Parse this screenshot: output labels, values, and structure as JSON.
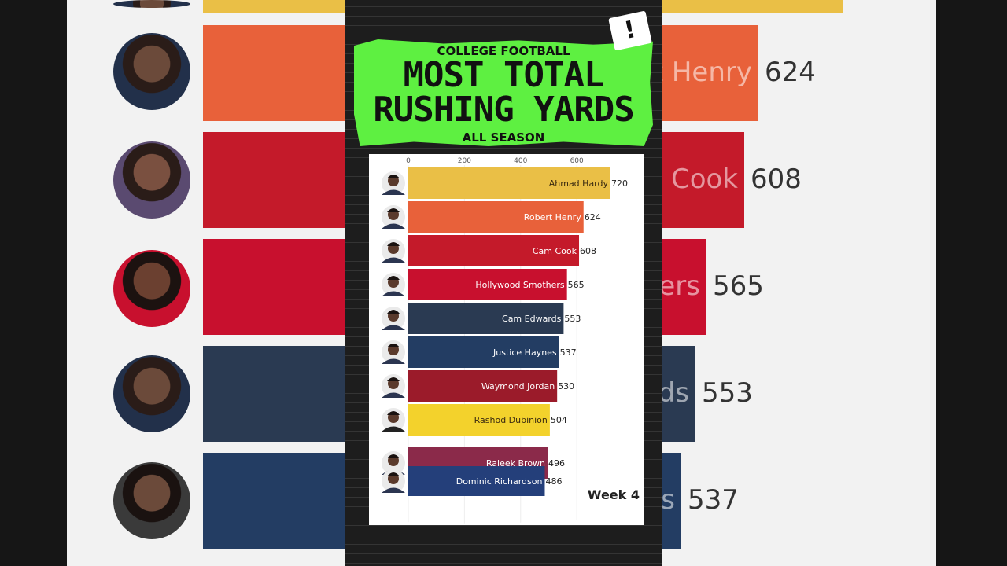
{
  "header": {
    "kicker": "COLLEGE FOOTBALL",
    "title_line1": "MOST TOTAL",
    "title_line2": "RUSHING YARDS",
    "subtitle": "ALL SEASON",
    "alert_glyph": "!"
  },
  "period": "Week 4",
  "chart_data": {
    "type": "bar",
    "orientation": "horizontal",
    "xlim": [
      0,
      720
    ],
    "ticks": [
      0,
      200,
      400,
      600
    ],
    "categories": [
      "Ahmad Hardy",
      "Robert Henry",
      "Cam Cook",
      "Hollywood Smothers",
      "Cam Edwards",
      "Justice Haynes",
      "Waymond Jordan",
      "Rashod Dubinion",
      "Raleek Brown",
      "Dominic Richardson"
    ],
    "values": [
      720,
      624,
      608,
      565,
      553,
      537,
      530,
      504,
      496,
      486
    ],
    "colors": [
      "#eabf46",
      "#e8613a",
      "#c41a2a",
      "#c8102e",
      "#2a3a52",
      "#233d63",
      "#9b1b2a",
      "#f3d22c",
      "#8b2a4a",
      "#243f7a"
    ]
  },
  "background": {
    "rows": [
      {
        "label": "t Henry",
        "value": "624",
        "color": "#e8613a"
      },
      {
        "label": "n Cook",
        "value": "608",
        "color": "#c41a2a"
      },
      {
        "label": "ers",
        "value": "565",
        "color": "#c8102e"
      },
      {
        "label": "ds",
        "value": "553",
        "color": "#2a3a52"
      },
      {
        "label": "s",
        "value": "537",
        "color": "#233d63"
      }
    ]
  }
}
